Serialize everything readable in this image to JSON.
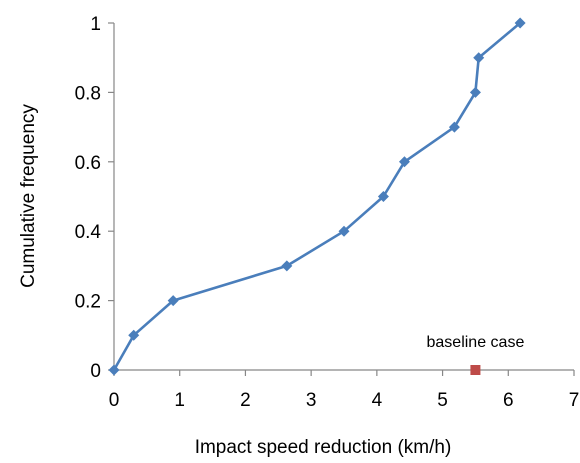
{
  "chart_data": {
    "type": "line",
    "title": "",
    "xlabel": "Impact speed reduction (km/h)",
    "ylabel": "Cumulative frequency",
    "xlim": [
      0,
      7
    ],
    "ylim": [
      0,
      1
    ],
    "x_ticks": [
      0,
      1,
      2,
      3,
      4,
      5,
      6,
      7
    ],
    "y_ticks": [
      0,
      0.2,
      0.4,
      0.6,
      0.8,
      1
    ],
    "grid": false,
    "series": [
      {
        "color": "#4a7ebb",
        "marker": "diamond",
        "points": [
          {
            "x": 0,
            "y": 0
          },
          {
            "x": 0.3,
            "y": 0.1
          },
          {
            "x": 0.9,
            "y": 0.2
          },
          {
            "x": 2.63,
            "y": 0.3
          },
          {
            "x": 3.5,
            "y": 0.4
          },
          {
            "x": 4.1,
            "y": 0.5
          },
          {
            "x": 4.42,
            "y": 0.6
          },
          {
            "x": 5.18,
            "y": 0.7
          },
          {
            "x": 5.5,
            "y": 0.8
          },
          {
            "x": 5.55,
            "y": 0.9
          },
          {
            "x": 6.18,
            "y": 1.0
          }
        ]
      }
    ],
    "annotation": {
      "text": "baseline case",
      "x": 5.5,
      "y": 0,
      "color": "#be4b48",
      "marker": "square"
    }
  }
}
